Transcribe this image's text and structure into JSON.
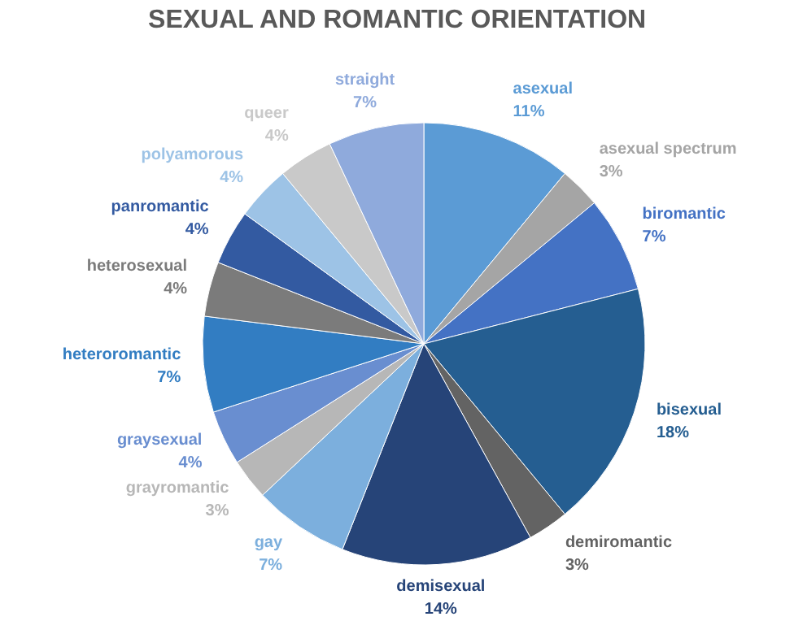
{
  "chart_data": {
    "type": "pie",
    "title": "SEXUAL AND ROMANTIC ORIENTATION",
    "categories": [
      "asexual",
      "asexual spectrum",
      "biromantic",
      "bisexual",
      "demiromantic",
      "demisexual",
      "gay",
      "grayromantic",
      "graysexual",
      "heteroromantic",
      "heterosexual",
      "panromantic",
      "polyamorous",
      "queer",
      "straight"
    ],
    "values": [
      11,
      3,
      7,
      18,
      3,
      14,
      7,
      3,
      4,
      7,
      4,
      4,
      4,
      4,
      7
    ],
    "value_labels": [
      "11%",
      "3%",
      "7%",
      "18%",
      "3%",
      "14%",
      "7%",
      "3%",
      "4%",
      "7%",
      "4%",
      "4%",
      "4%",
      "4%",
      "7%"
    ],
    "colors": [
      "#5b9bd5",
      "#a5a5a5",
      "#4472c4",
      "#255e91",
      "#636363",
      "#264478",
      "#7cafdd",
      "#b7b7b7",
      "#698ed0",
      "#327dc2",
      "#7b7b7b",
      "#335aa1",
      "#9dc3e6",
      "#c9c9c9",
      "#8faadc"
    ]
  }
}
